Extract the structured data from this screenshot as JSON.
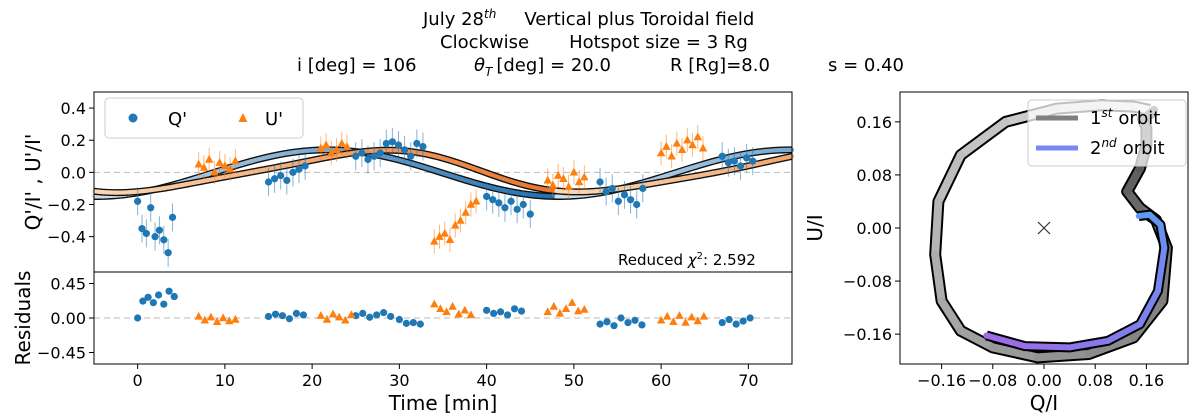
{
  "figure": {
    "title_line1_prefix": "July 28",
    "title_line1_sup": "th",
    "title_line1_rest": "Vertical plus Toroidal field",
    "title_line2_a": "Clockwise",
    "title_line2_b": "Hotspot size = 3 Rg",
    "param_i": "i [deg] = 106",
    "param_theta_sym": "θ",
    "param_theta_sub": "T",
    "param_theta_rest": "[deg] = 20.0",
    "param_r": "R [Rg]=8.0",
    "param_s": "s = 0.40"
  },
  "colors": {
    "q_points": "#1f77b4",
    "u_points": "#ff7f0e",
    "q_model_light": "#cfe0ee",
    "q_model_dark": "#1f6fb0",
    "u_model_light": "#fbd9b6",
    "u_model_dark": "#e8742a",
    "orbit1_light": "#e0e0e0",
    "orbit1_dark": "#444444",
    "orbit2_light": "#5b9bf0",
    "orbit2_dark": "#9b6be8",
    "legend_orbit1": "#7f7f7f",
    "legend_orbit2": "#7b86f5"
  },
  "chart_data": [
    {
      "id": "polarization",
      "type": "scatter",
      "ylabel": "Q'/I' , U'/I'",
      "xlim": [
        -5,
        75
      ],
      "ylim": [
        -0.62,
        0.5
      ],
      "yticks": [
        "0.4",
        "0.2",
        "0.0",
        "−0.2",
        "−0.4"
      ],
      "ytick_values": [
        0.4,
        0.2,
        0.0,
        -0.2,
        -0.4
      ],
      "legend": {
        "position": "top-left",
        "q_label": "Q'",
        "u_label": "U'"
      },
      "annotation_prefix": "Reduced ",
      "annotation_chi": "χ",
      "annotation_sup": "2",
      "annotation_value": ":  2.592",
      "model_period_min": 53,
      "series": [
        {
          "name": "Q'",
          "marker": "circle",
          "x": [
            0.0,
            0.5,
            1.0,
            1.5,
            2.0,
            2.5,
            3.0,
            3.5,
            4.0,
            15.0,
            15.7,
            16.4,
            17.1,
            17.8,
            18.5,
            19.2,
            25.0,
            25.7,
            26.4,
            27.1,
            27.8,
            28.5,
            29.2,
            29.9,
            30.6,
            31.3,
            32.0,
            32.7,
            40.0,
            40.7,
            41.4,
            42.1,
            42.8,
            43.5,
            44.2,
            45.0,
            53.0,
            53.7,
            54.4,
            55.1,
            55.8,
            56.5,
            57.2,
            57.9,
            67.0,
            67.7,
            68.4,
            69.1,
            69.8,
            70.5
          ],
          "y": [
            -0.18,
            -0.35,
            -0.38,
            -0.22,
            -0.4,
            -0.36,
            -0.42,
            -0.5,
            -0.28,
            -0.06,
            -0.04,
            -0.02,
            -0.05,
            0.0,
            0.02,
            0.04,
            0.1,
            0.12,
            0.08,
            0.1,
            0.12,
            0.18,
            0.19,
            0.17,
            0.14,
            0.1,
            0.18,
            0.16,
            -0.15,
            -0.17,
            -0.19,
            -0.22,
            -0.18,
            -0.23,
            -0.2,
            -0.26,
            -0.06,
            -0.12,
            -0.1,
            -0.18,
            -0.14,
            -0.17,
            -0.2,
            -0.1,
            0.1,
            0.06,
            0.07,
            0.04,
            0.09,
            0.07
          ]
        },
        {
          "name": "U'",
          "marker": "triangle",
          "x": [
            7.0,
            7.6,
            8.2,
            8.8,
            9.4,
            10.0,
            10.6,
            11.2,
            21.0,
            21.6,
            22.2,
            22.8,
            23.4,
            24.0,
            34.0,
            34.6,
            35.2,
            35.8,
            36.4,
            37.0,
            37.6,
            38.2,
            38.8,
            47.0,
            47.6,
            48.2,
            48.8,
            49.4,
            50.0,
            50.6,
            51.2,
            60.0,
            60.6,
            61.2,
            61.8,
            62.4,
            63.0,
            63.6,
            64.2,
            64.8
          ],
          "y": [
            0.05,
            0.03,
            0.08,
            0.0,
            0.06,
            0.04,
            0.02,
            0.07,
            0.15,
            0.17,
            0.12,
            0.14,
            0.18,
            0.16,
            -0.43,
            -0.4,
            -0.38,
            -0.42,
            -0.33,
            -0.3,
            -0.25,
            -0.2,
            -0.18,
            -0.05,
            -0.08,
            -0.02,
            -0.04,
            -0.09,
            0.0,
            -0.06,
            -0.03,
            0.12,
            0.16,
            0.1,
            0.18,
            0.14,
            0.2,
            0.17,
            0.22,
            0.15
          ]
        }
      ]
    },
    {
      "id": "residuals",
      "type": "scatter",
      "xlabel": "Time [min]",
      "ylabel": "Residuals",
      "xlim": [
        -5,
        75
      ],
      "ylim": [
        -0.6,
        0.6
      ],
      "xticks": [
        "0",
        "10",
        "20",
        "30",
        "40",
        "50",
        "60",
        "70"
      ],
      "xtick_values": [
        0,
        10,
        20,
        30,
        40,
        50,
        60,
        70
      ],
      "yticks": [
        "0.45",
        "0.00",
        "−0.45"
      ],
      "ytick_values": [
        0.45,
        0.0,
        -0.45
      ],
      "series": [
        {
          "name": "Q' residuals",
          "marker": "circle",
          "x": [
            0.0,
            0.6,
            1.2,
            1.8,
            2.4,
            3.0,
            3.6,
            4.2,
            15.0,
            15.8,
            16.6,
            17.4,
            18.2,
            19.0,
            25.0,
            25.8,
            26.6,
            27.4,
            28.2,
            29.0,
            30.0,
            30.8,
            31.6,
            32.4,
            40.0,
            40.8,
            41.6,
            42.4,
            43.2,
            44.0,
            53.0,
            53.8,
            54.6,
            55.4,
            56.2,
            57.0,
            57.8,
            67.0,
            67.8,
            68.6,
            69.4,
            70.2
          ],
          "y": [
            0.0,
            0.22,
            0.27,
            0.2,
            0.3,
            0.18,
            0.35,
            0.28,
            0.02,
            0.05,
            0.03,
            -0.01,
            0.06,
            0.04,
            0.03,
            0.06,
            0.01,
            0.04,
            0.07,
            0.02,
            -0.02,
            -0.07,
            -0.06,
            -0.08,
            0.1,
            0.06,
            0.08,
            0.04,
            0.12,
            0.09,
            -0.08,
            -0.05,
            -0.1,
            0.0,
            -0.06,
            -0.03,
            -0.09,
            -0.06,
            -0.02,
            -0.08,
            -0.04,
            0.0
          ]
        },
        {
          "name": "U' residuals",
          "marker": "triangle",
          "x": [
            7.0,
            7.7,
            8.4,
            9.1,
            9.8,
            10.5,
            11.2,
            21.0,
            21.7,
            22.4,
            23.1,
            23.8,
            24.5,
            34.0,
            34.7,
            35.4,
            36.1,
            36.8,
            37.5,
            38.2,
            47.0,
            47.7,
            48.4,
            49.1,
            49.8,
            50.5,
            51.2,
            60.0,
            60.7,
            61.4,
            62.1,
            62.8,
            63.5,
            64.2,
            64.9
          ],
          "y": [
            0.02,
            -0.03,
            0.01,
            -0.05,
            0.0,
            -0.04,
            -0.02,
            0.03,
            -0.02,
            0.05,
            0.01,
            -0.03,
            0.04,
            0.18,
            0.12,
            0.08,
            0.15,
            0.05,
            0.1,
            0.04,
            0.08,
            0.15,
            0.06,
            0.12,
            0.2,
            0.09,
            0.11,
            -0.03,
            0.02,
            -0.05,
            0.03,
            -0.06,
            0.01,
            -0.04,
            0.02
          ]
        }
      ]
    },
    {
      "id": "qu_loop",
      "type": "line",
      "xlabel": "Q/I",
      "ylabel": "U/I",
      "xlim": [
        -0.225,
        0.225
      ],
      "ylim": [
        -0.205,
        0.205
      ],
      "xticks": [
        "−0.16",
        "−0.08",
        "0.00",
        "0.08",
        "0.16"
      ],
      "xtick_values": [
        -0.16,
        -0.08,
        0.0,
        0.08,
        0.16
      ],
      "yticks": [
        "0.16",
        "0.08",
        "0.00",
        "−0.08",
        "−0.16"
      ],
      "ytick_values": [
        0.16,
        0.08,
        0.0,
        -0.08,
        -0.16
      ],
      "center_marker": [
        0.0,
        0.0
      ],
      "legend": {
        "position": "top-right",
        "entries": [
          {
            "num": "1",
            "sup": "st",
            "label": "orbit"
          },
          {
            "num": "2",
            "sup": "nd",
            "label": "orbit"
          }
        ]
      },
      "orbit_path": {
        "q": [
          0.165,
          0.14,
          0.09,
          0.02,
          -0.06,
          -0.13,
          -0.165,
          -0.17,
          -0.16,
          -0.13,
          -0.08,
          -0.01,
          0.07,
          0.14,
          0.185,
          0.192,
          0.175,
          0.15,
          0.13,
          0.15,
          0.16,
          0.16,
          0.155,
          0.172
        ],
        "u": [
          0.178,
          0.183,
          0.185,
          0.18,
          0.16,
          0.11,
          0.04,
          -0.04,
          -0.11,
          -0.155,
          -0.18,
          -0.195,
          -0.19,
          -0.165,
          -0.11,
          -0.03,
          0.012,
          0.03,
          0.055,
          0.09,
          0.125,
          0.15,
          0.165,
          0.178
        ]
      },
      "orbit2_path": {
        "q": [
          -0.09,
          -0.03,
          0.04,
          0.1,
          0.15,
          0.178,
          0.188,
          0.182,
          0.165,
          0.148
        ],
        "u": [
          -0.162,
          -0.178,
          -0.18,
          -0.17,
          -0.145,
          -0.095,
          -0.03,
          0.005,
          0.02,
          0.018
        ]
      }
    }
  ]
}
